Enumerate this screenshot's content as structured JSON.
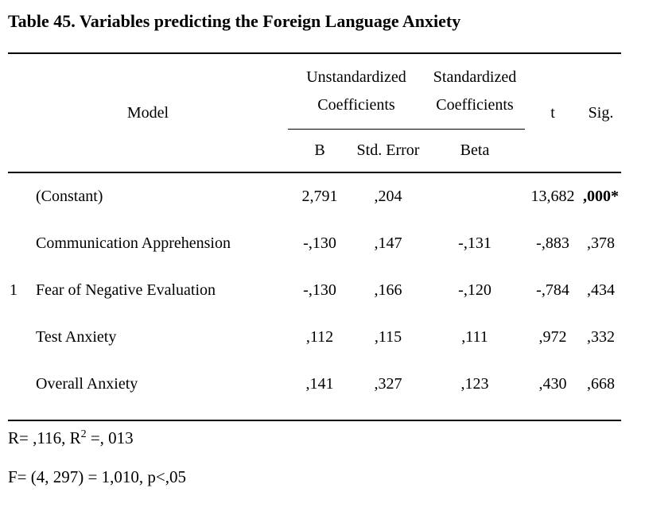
{
  "caption": "Table 45. Variables predicting the Foreign Language Anxiety",
  "table": {
    "headers": {
      "model": "Model",
      "unstandardized": "Unstandardized Coefficients",
      "standardized": "Standardized Coefficients",
      "t": "t",
      "sig": "Sig.",
      "b": "B",
      "std_error": "Std. Error",
      "beta": "Beta"
    },
    "model_number": "1",
    "rows": [
      {
        "predictor": "(Constant)",
        "b": "2,791",
        "std_error": ",204",
        "beta": "",
        "t": "13,682",
        "sig": ",000*"
      },
      {
        "predictor": "Communication Apprehension",
        "b": "-,130",
        "std_error": ",147",
        "beta": "-,131",
        "t": "-,883",
        "sig": ",378"
      },
      {
        "predictor": "Fear of Negative Evaluation",
        "b": "-,130",
        "std_error": ",166",
        "beta": "-,120",
        "t": "-,784",
        "sig": ",434"
      },
      {
        "predictor": "Test Anxiety",
        "b": ",112",
        "std_error": ",115",
        "beta": ",111",
        "t": ",972",
        "sig": ",332"
      },
      {
        "predictor": "Overall Anxiety",
        "b": ",141",
        "std_error": ",327",
        "beta": ",123",
        "t": ",430",
        "sig": ",668"
      }
    ]
  },
  "notes": {
    "r_line": {
      "prefix": "R= ,116, R",
      "sup": "2",
      "suffix": " =, 013"
    },
    "f_line": "F= (4, 297) = 1,010, p<,05"
  },
  "chart_data": {
    "type": "table",
    "title": "Table 45. Variables predicting the Foreign Language Anxiety",
    "columns": [
      "Model",
      "B",
      "Std. Error",
      "Beta",
      "t",
      "Sig."
    ],
    "rows": [
      [
        "(Constant)",
        "2,791",
        ",204",
        "",
        "13,682",
        ",000*"
      ],
      [
        "Communication Apprehension",
        "-,130",
        ",147",
        "-,131",
        "-,883",
        ",378"
      ],
      [
        "Fear of Negative Evaluation",
        "-,130",
        ",166",
        "-,120",
        "-,784",
        ",434"
      ],
      [
        "Test Anxiety",
        ",112",
        ",115",
        ",111",
        ",972",
        ",332"
      ],
      [
        "Overall Anxiety",
        ",141",
        ",327",
        ",123",
        ",430",
        ",668"
      ]
    ],
    "annotations": [
      "R= ,116, R2 =, 013",
      "F= (4, 297) = 1,010, p<,05"
    ]
  }
}
